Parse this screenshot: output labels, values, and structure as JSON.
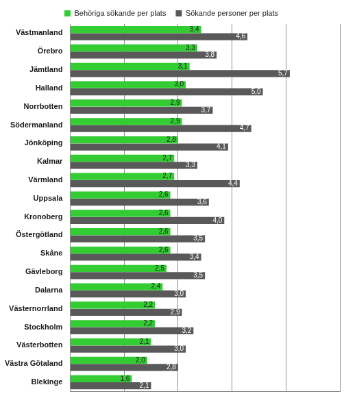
{
  "chart_data": {
    "type": "bar",
    "orientation": "horizontal",
    "categories": [
      "Västmanland",
      "Örebro",
      "Jämtland",
      "Halland",
      "Norrbotten",
      "Södermanland",
      "Jönköping",
      "Kalmar",
      "Värmland",
      "Uppsala",
      "Kronoberg",
      "Östergötland",
      "Skåne",
      "Gävleborg",
      "Dalarna",
      "Västernorrland",
      "Stockholm",
      "Västerbotten",
      "Västra Götaland",
      "Blekinge"
    ],
    "series": [
      {
        "name": "Behöriga sökande per plats",
        "color": "#33cc33",
        "values": [
          3.4,
          3.3,
          3.1,
          3.0,
          2.9,
          2.9,
          2.8,
          2.7,
          2.7,
          2.6,
          2.6,
          2.6,
          2.6,
          2.5,
          2.4,
          2.2,
          2.2,
          2.1,
          2.0,
          1.6
        ],
        "value_labels": [
          "3,4",
          "3,3",
          "3,1",
          "3,0",
          "2,9",
          "2,9",
          "2,8",
          "2,7",
          "2,7",
          "2,6",
          "2,6",
          "2,6",
          "2,6",
          "2,5",
          "2,4",
          "2,2",
          "2,2",
          "2,1",
          "2,0",
          "1,6"
        ]
      },
      {
        "name": "Sökande personer per plats",
        "color": "#595959",
        "values": [
          4.6,
          3.8,
          5.7,
          5.0,
          3.7,
          4.7,
          4.1,
          3.3,
          4.4,
          3.6,
          4.0,
          3.5,
          3.4,
          3.5,
          3.0,
          2.9,
          3.2,
          3.0,
          2.8,
          2.1
        ],
        "value_labels": [
          "4,6",
          "3,8",
          "5,7",
          "5,0",
          "3,7",
          "4,7",
          "4,1",
          "3,3",
          "4,4",
          "3,6",
          "4,0",
          "3,5",
          "3,4",
          "3,5",
          "3,0",
          "2,9",
          "3,2",
          "3,0",
          "2,8",
          "2,1"
        ]
      }
    ],
    "xlim": [
      0,
      7
    ],
    "xticks": [
      0,
      1.4,
      2.8,
      4.2,
      5.6,
      7
    ],
    "grid": true,
    "legend": "top",
    "data_labels": true,
    "tick_labels": "y"
  }
}
